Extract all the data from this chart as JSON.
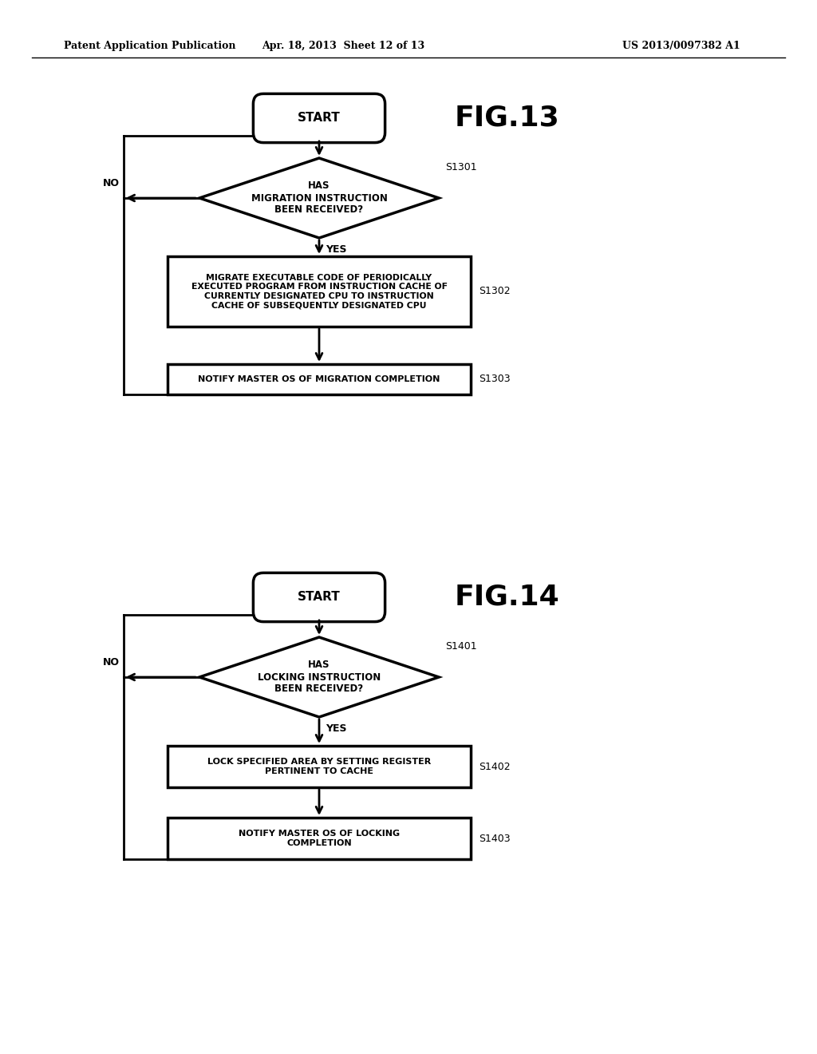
{
  "bg_color": "#ffffff",
  "header_text1": "Patent Application Publication",
  "header_text2": "Apr. 18, 2013  Sheet 12 of 13",
  "header_text3": "US 2013/0097382 A1",
  "fig13_label": "FIG.13",
  "fig14_label": "FIG.14",
  "fig13_start_text": "START",
  "fig13_diamond_text": "HAS\nMIGRATION INSTRUCTION\nBEEN RECEIVED?",
  "fig13_s1301": "S1301",
  "fig13_no": "NO",
  "fig13_yes": "YES",
  "fig13_box1_text": "MIGRATE EXECUTABLE CODE OF PERIODICALLY\nEXECUTED PROGRAM FROM INSTRUCTION CACHE OF\nCURRENTLY DESIGNATED CPU TO INSTRUCTION\nCACHE OF SUBSEQUENTLY DESIGNATED CPU",
  "fig13_s1302": "S1302",
  "fig13_box2_text": "NOTIFY MASTER OS OF MIGRATION COMPLETION",
  "fig13_s1303": "S1303",
  "fig14_start_text": "START",
  "fig14_diamond_text": "HAS\nLOCKING INSTRUCTION\nBEEN RECEIVED?",
  "fig14_s1401": "S1401",
  "fig14_no": "NO",
  "fig14_yes": "YES",
  "fig14_box1_text": "LOCK SPECIFIED AREA BY SETTING REGISTER\nPERTINENT TO CACHE",
  "fig14_s1402": "S1402",
  "fig14_box2_text": "NOTIFY MASTER OS OF LOCKING\nCOMPLETION",
  "fig14_s1403": "S1403"
}
